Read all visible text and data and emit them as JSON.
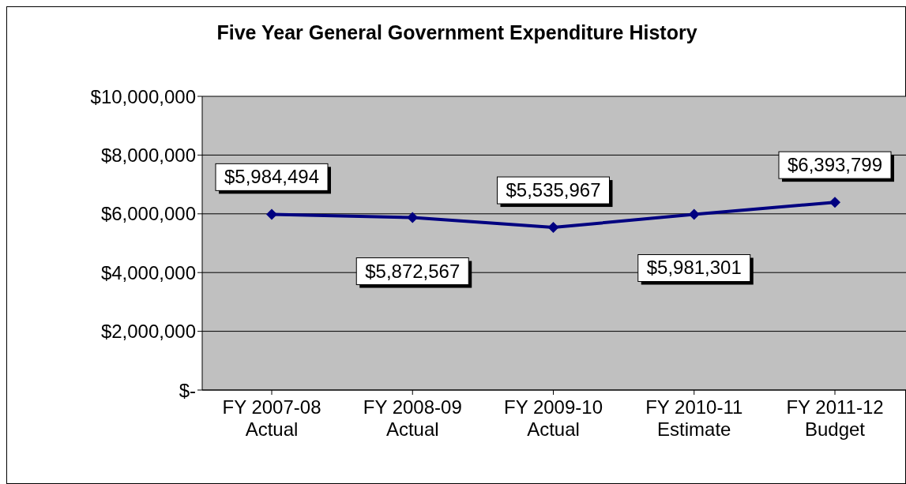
{
  "chart_data": {
    "type": "line",
    "title": "Five Year General Government Expenditure History",
    "categories": [
      "FY 2007-08\nActual",
      "FY 2008-09\nActual",
      "FY 2009-10\nActual",
      "FY 2010-11\nEstimate",
      "FY 2011-12\nBudget"
    ],
    "series": [
      {
        "color": "#000080",
        "values": [
          5984494,
          5872567,
          5535967,
          5981301,
          6393799
        ],
        "value_labels": [
          "$5,984,494",
          "$5,872,567",
          "$5,535,967",
          "$5,981,301",
          "$6,393,799"
        ]
      }
    ],
    "ylim": [
      0,
      10000000
    ],
    "yticks": [
      {
        "value": 0,
        "label": "$-"
      },
      {
        "value": 2000000,
        "label": "$2,000,000"
      },
      {
        "value": 4000000,
        "label": "$4,000,000"
      },
      {
        "value": 6000000,
        "label": "$6,000,000"
      },
      {
        "value": 8000000,
        "label": "$8,000,000"
      },
      {
        "value": 10000000,
        "label": "$10,000,000"
      }
    ],
    "grid": "y",
    "marker": "diamond",
    "line_style": "solid",
    "legend": false
  }
}
